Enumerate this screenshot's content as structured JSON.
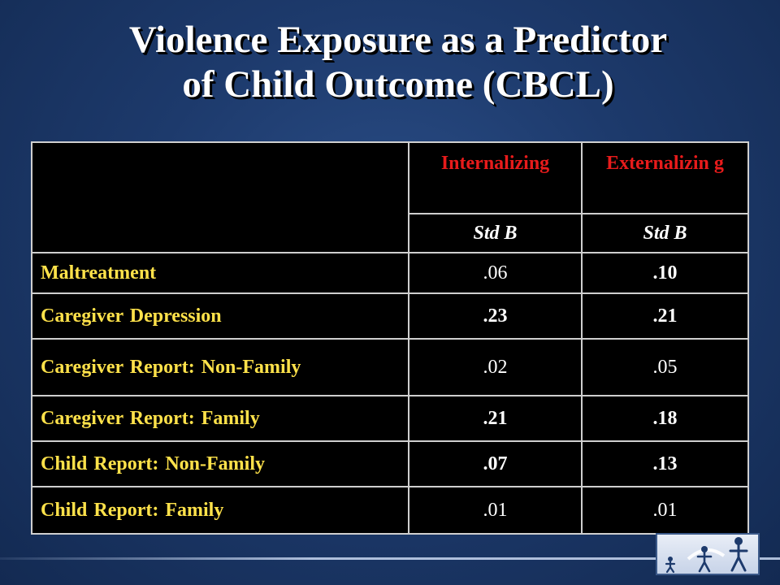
{
  "slide": {
    "title_line1": "Violence Exposure as a Predictor",
    "title_line2": "of Child Outcome (CBCL)"
  },
  "table": {
    "header": {
      "col1": "Internalizing",
      "col2": "Externalizin g",
      "sub1": "Std B",
      "sub2": "Std B"
    },
    "rows": [
      {
        "label": "Maltreatment",
        "internalizing": ".06",
        "externalizing": ".10"
      },
      {
        "label": "Caregiver Depression",
        "internalizing": ".23",
        "externalizing": ".21"
      },
      {
        "label": "Caregiver Report: Non-Family",
        "internalizing": ".02",
        "externalizing": ".05"
      },
      {
        "label": "Caregiver Report: Family",
        "internalizing": ".21",
        "externalizing": ".18"
      },
      {
        "label": "Child Report: Non-Family",
        "internalizing": ".07",
        "externalizing": ".13"
      },
      {
        "label": "Child Report: Family",
        "internalizing": ".01",
        "externalizing": ".01"
      }
    ]
  },
  "colors": {
    "background": "#1d3a6c",
    "header_text": "#e81b1b",
    "row_label_text": "#ffe24a",
    "value_text": "#ffffff",
    "table_bg": "#000000"
  },
  "icons": {
    "logo": "family-figures-logo-icon"
  }
}
